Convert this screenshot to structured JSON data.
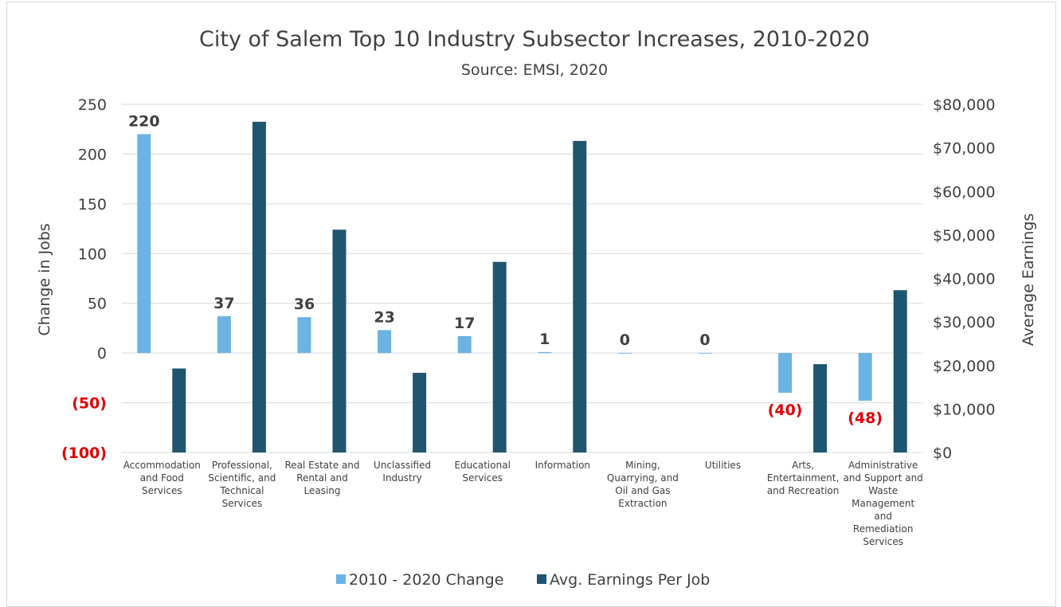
{
  "chart_data": {
    "type": "bar",
    "title": "City of Salem Top 10 Industry Subsector Increases, 2010-2020",
    "subtitle": "Source: EMSI, 2020",
    "categories": [
      [
        "Accommodation",
        "and Food",
        "Services"
      ],
      [
        "Professional,",
        "Scientific, and",
        "Technical",
        "Services"
      ],
      [
        "Real Estate and",
        "Rental and",
        "Leasing"
      ],
      [
        "Unclassified",
        "Industry"
      ],
      [
        "Educational",
        "Services"
      ],
      [
        "Information"
      ],
      [
        "Mining,",
        "Quarrying, and",
        "Oil and Gas",
        "Extraction"
      ],
      [
        "Utilities"
      ],
      [
        "Arts,",
        "Entertainment,",
        "and Recreation"
      ],
      [
        "Administrative",
        "and Support and",
        "Waste",
        "Management",
        "and",
        "Remediation",
        "Services"
      ]
    ],
    "series": [
      {
        "name": "2010 - 2020 Change",
        "axis": "left",
        "color": "#6cb2e3",
        "values": [
          220,
          37,
          36,
          23,
          17,
          1,
          0,
          0,
          -40,
          -48
        ],
        "labels": [
          "220",
          "37",
          "36",
          "23",
          "17",
          "1",
          "0",
          "0",
          "(40)",
          "(48)"
        ]
      },
      {
        "name": "Avg. Earnings Per Job",
        "axis": "right",
        "color": "#1f566f",
        "values": [
          19300,
          76000,
          51200,
          18300,
          43800,
          71600,
          0,
          0,
          20300,
          37300
        ]
      }
    ],
    "y_left": {
      "label": "Change in Jobs",
      "lim": [
        -100,
        250
      ],
      "ticks": [
        250,
        200,
        150,
        100,
        50,
        0,
        -50,
        -100
      ],
      "tick_labels": [
        "250",
        "200",
        "150",
        "100",
        "50",
        "0",
        "(50)",
        "(100)"
      ]
    },
    "y_right": {
      "label": "Average Earnings",
      "lim": [
        0,
        80000
      ],
      "ticks": [
        80000,
        70000,
        60000,
        50000,
        40000,
        30000,
        20000,
        10000,
        0
      ],
      "tick_labels": [
        "$80,000",
        "$70,000",
        "$60,000",
        "$50,000",
        "$40,000",
        "$30,000",
        "$20,000",
        "$10,000",
        "$0"
      ]
    },
    "grid": "horizontal",
    "legend": "bottom"
  }
}
